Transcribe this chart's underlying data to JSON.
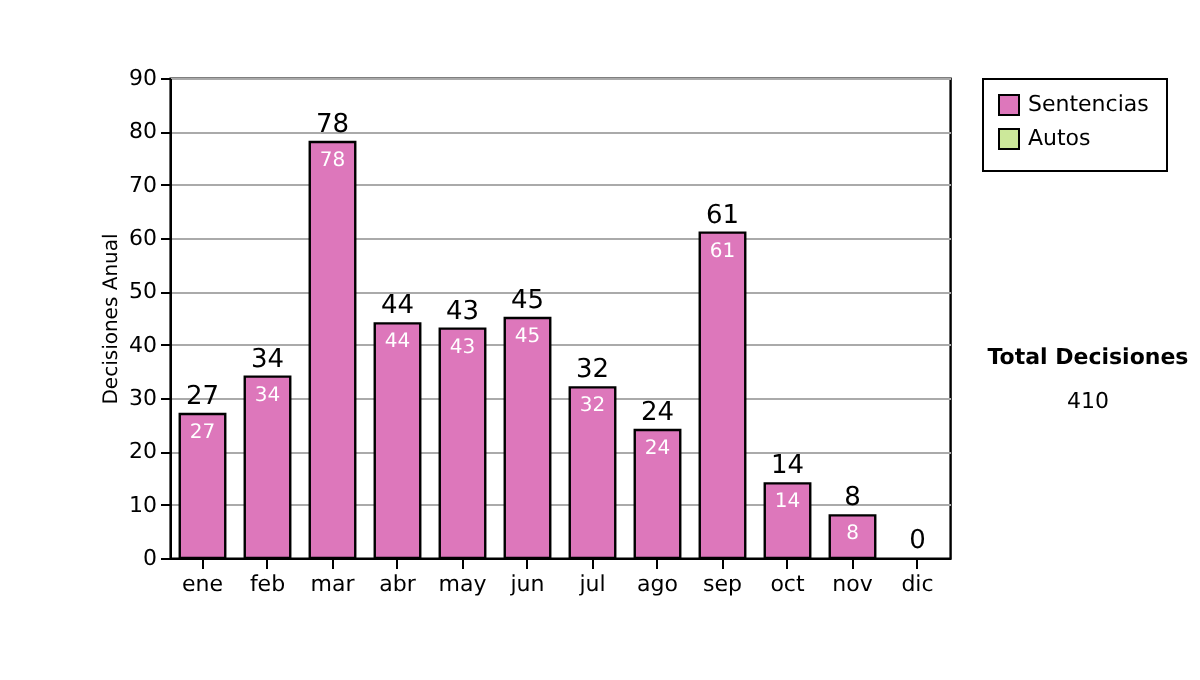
{
  "chart_data": {
    "type": "bar",
    "ylabel": "Decisiones Anual",
    "categories": [
      "ene",
      "feb",
      "mar",
      "abr",
      "may",
      "jun",
      "jul",
      "ago",
      "sep",
      "oct",
      "nov",
      "dic"
    ],
    "series": [
      {
        "name": "Sentencias",
        "color": "#dd77bb",
        "values": [
          27,
          34,
          78,
          44,
          43,
          45,
          32,
          24,
          61,
          14,
          8,
          0
        ],
        "value_labels": [
          "27",
          "34",
          "78",
          "44",
          "43",
          "45",
          "32",
          "24",
          "61",
          "14",
          "8",
          null
        ]
      },
      {
        "name": "Autos",
        "color": "#cce89a",
        "values": [
          0,
          0,
          0,
          0,
          0,
          0,
          0,
          0,
          0,
          0,
          0,
          0
        ]
      }
    ],
    "stacked": true,
    "totals": [
      "27",
      "34",
      "78",
      "44",
      "43",
      "45",
      "32",
      "24",
      "61",
      "14",
      "8",
      "0"
    ],
    "ylim": [
      0,
      90
    ],
    "yticks": [
      0,
      10,
      20,
      30,
      40,
      50,
      60,
      70,
      80,
      90
    ],
    "grid": "y",
    "legend": "right",
    "annotations": [
      "Total Decisiones",
      "410"
    ]
  }
}
